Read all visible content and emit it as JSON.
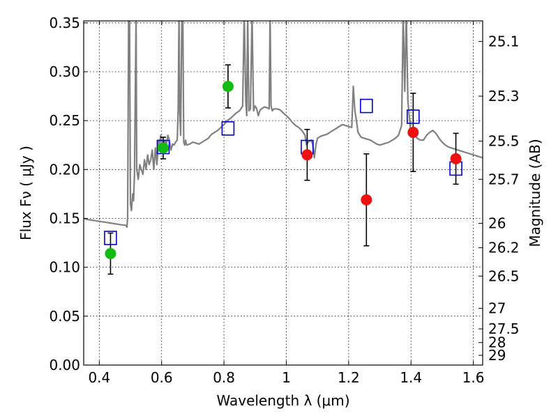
{
  "chart_data": {
    "type": "scatter",
    "title": "",
    "xlabel": "Wavelength  λ (μm)",
    "ylabel": "Flux  Fν  ( μJy )",
    "y2label": "Magnitude (AB)",
    "xlim": [
      0.35,
      1.63
    ],
    "ylim": [
      0.0,
      0.352
    ],
    "grid": true,
    "legend": "none",
    "x_ticks": [
      0.4,
      0.6,
      0.8,
      1.0,
      1.2,
      1.4,
      1.6
    ],
    "x_tick_labels": [
      "0.4",
      "0.6",
      "0.8",
      "1",
      "1.2",
      "1.4",
      "1.6"
    ],
    "y_ticks": [
      0.0,
      0.05,
      0.1,
      0.15,
      0.2,
      0.25,
      0.3,
      0.35
    ],
    "y_tick_labels": [
      "0.00",
      "0.05",
      "0.10",
      "0.15",
      "0.20",
      "0.25",
      "0.30",
      "0.35"
    ],
    "y2_ticks": [
      {
        "flux": 0.331,
        "label": "25.1"
      },
      {
        "flux": 0.275,
        "label": "25.3"
      },
      {
        "flux": 0.229,
        "label": "25.5"
      },
      {
        "flux": 0.19,
        "label": "25.7"
      },
      {
        "flux": 0.145,
        "label": "26"
      },
      {
        "flux": 0.12,
        "label": "26.2"
      },
      {
        "flux": 0.091,
        "label": "26.5"
      },
      {
        "flux": 0.058,
        "label": "27"
      },
      {
        "flux": 0.037,
        "label": "27.5"
      },
      {
        "flux": 0.023,
        "label": "28"
      },
      {
        "flux": 0.01,
        "label": "29"
      }
    ],
    "colors": {
      "model": "#808080",
      "model_photometry": "#0000cc",
      "observed_blue": "#11bb11",
      "observed_red": "#ee1111",
      "errorbar": "#000000"
    },
    "series": [
      {
        "kind": "spectrum",
        "x": [
          0.35,
          0.36,
          0.38,
          0.4,
          0.42,
          0.44,
          0.46,
          0.48,
          0.485,
          0.489,
          0.491,
          0.494,
          0.497,
          0.5,
          0.503,
          0.507,
          0.51,
          0.513,
          0.518,
          0.52,
          0.525,
          0.53,
          0.535,
          0.54,
          0.545,
          0.55,
          0.555,
          0.56,
          0.565,
          0.57,
          0.575,
          0.58,
          0.585,
          0.59,
          0.593,
          0.597,
          0.6,
          0.603,
          0.606,
          0.61,
          0.615,
          0.62,
          0.625,
          0.63,
          0.635,
          0.64,
          0.645,
          0.65,
          0.653,
          0.656,
          0.658,
          0.661,
          0.665,
          0.668,
          0.671,
          0.674,
          0.677,
          0.68,
          0.69,
          0.7,
          0.71,
          0.72,
          0.73,
          0.74,
          0.75,
          0.76,
          0.77,
          0.78,
          0.79,
          0.8,
          0.81,
          0.82,
          0.83,
          0.84,
          0.85,
          0.86,
          0.865,
          0.87,
          0.873,
          0.876,
          0.88,
          0.885,
          0.89,
          0.895,
          0.9,
          0.905,
          0.91,
          0.915,
          0.92,
          0.93,
          0.94,
          0.945,
          0.948,
          0.951,
          0.955,
          0.96,
          0.97,
          0.98,
          0.99,
          1.0,
          1.01,
          1.02,
          1.03,
          1.04,
          1.05,
          1.06,
          1.065,
          1.07,
          1.08,
          1.085,
          1.09,
          1.095,
          1.1,
          1.11,
          1.12,
          1.13,
          1.14,
          1.15,
          1.16,
          1.17,
          1.18,
          1.19,
          1.2,
          1.21,
          1.215,
          1.22,
          1.225,
          1.23,
          1.24,
          1.25,
          1.26,
          1.27,
          1.28,
          1.29,
          1.3,
          1.31,
          1.32,
          1.33,
          1.34,
          1.35,
          1.36,
          1.37,
          1.375,
          1.38,
          1.385,
          1.39,
          1.4,
          1.41,
          1.42,
          1.43,
          1.44,
          1.45,
          1.46,
          1.47,
          1.48,
          1.49,
          1.5,
          1.51,
          1.52,
          1.53,
          1.54,
          1.55,
          1.56,
          1.57,
          1.58,
          1.59,
          1.6,
          1.61,
          1.62,
          1.63
        ],
        "y": [
          0.15,
          0.149,
          0.148,
          0.147,
          0.146,
          0.145,
          0.144,
          0.143,
          0.143,
          0.141,
          0.152,
          0.36,
          0.36,
          0.165,
          0.158,
          0.175,
          0.168,
          0.195,
          0.36,
          0.2,
          0.19,
          0.205,
          0.2,
          0.195,
          0.21,
          0.2,
          0.215,
          0.205,
          0.21,
          0.22,
          0.2,
          0.222,
          0.205,
          0.23,
          0.225,
          0.235,
          0.228,
          0.22,
          0.225,
          0.23,
          0.225,
          0.235,
          0.23,
          0.22,
          0.226,
          0.225,
          0.228,
          0.23,
          0.26,
          0.36,
          0.26,
          0.235,
          0.36,
          0.36,
          0.228,
          0.225,
          0.23,
          0.225,
          0.226,
          0.228,
          0.227,
          0.226,
          0.228,
          0.23,
          0.232,
          0.236,
          0.238,
          0.24,
          0.243,
          0.246,
          0.25,
          0.252,
          0.255,
          0.258,
          0.26,
          0.265,
          0.36,
          0.27,
          0.255,
          0.36,
          0.26,
          0.262,
          0.36,
          0.26,
          0.265,
          0.262,
          0.255,
          0.26,
          0.262,
          0.264,
          0.263,
          0.262,
          0.36,
          0.265,
          0.26,
          0.262,
          0.262,
          0.261,
          0.258,
          0.255,
          0.252,
          0.248,
          0.245,
          0.243,
          0.24,
          0.235,
          0.225,
          0.228,
          0.23,
          0.225,
          0.212,
          0.225,
          0.232,
          0.234,
          0.235,
          0.236,
          0.238,
          0.24,
          0.242,
          0.244,
          0.246,
          0.245,
          0.244,
          0.243,
          0.285,
          0.26,
          0.25,
          0.238,
          0.233,
          0.232,
          0.231,
          0.23,
          0.228,
          0.226,
          0.225,
          0.226,
          0.227,
          0.228,
          0.23,
          0.232,
          0.235,
          0.245,
          0.36,
          0.28,
          0.36,
          0.27,
          0.235,
          0.236,
          0.232,
          0.23,
          0.23,
          0.235,
          0.238,
          0.24,
          0.237,
          0.232,
          0.228,
          0.225,
          0.223,
          0.222,
          0.221,
          0.22,
          0.219,
          0.218,
          0.217,
          0.216,
          0.215,
          0.214,
          0.213,
          0.212
        ]
      },
      {
        "kind": "model-photometry",
        "x": [
          0.436,
          0.605,
          0.813,
          1.067,
          1.257,
          1.407,
          1.544
        ],
        "y": [
          0.13,
          0.223,
          0.242,
          0.223,
          0.265,
          0.254,
          0.201
        ]
      },
      {
        "kind": "observed",
        "points": [
          {
            "x": 0.436,
            "y": 0.114,
            "err": 0.021,
            "color": "observed_blue"
          },
          {
            "x": 0.605,
            "y": 0.222,
            "err": 0.011,
            "color": "observed_blue"
          },
          {
            "x": 0.813,
            "y": 0.285,
            "err": 0.022,
            "color": "observed_blue"
          },
          {
            "x": 1.067,
            "y": 0.215,
            "err": 0.026,
            "color": "observed_red"
          },
          {
            "x": 1.257,
            "y": 0.169,
            "err": 0.047,
            "color": "observed_red"
          },
          {
            "x": 1.407,
            "y": 0.238,
            "err": 0.04,
            "color": "observed_red"
          },
          {
            "x": 1.544,
            "y": 0.211,
            "err": 0.026,
            "color": "observed_red"
          }
        ]
      }
    ]
  }
}
